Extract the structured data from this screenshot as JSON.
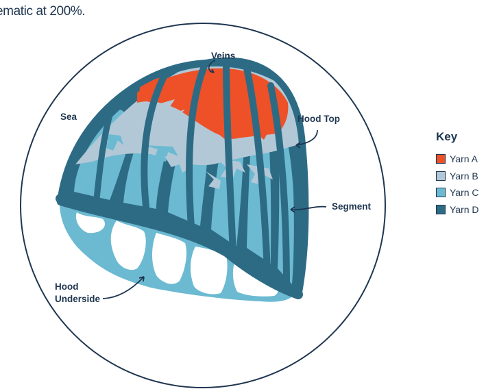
{
  "caption": "ematic at 200%.",
  "labels": {
    "veins": "Veins",
    "sea": "Sea",
    "hood_top": "Hood Top",
    "segment": "Segment",
    "hood_underside_line1": "Hood",
    "hood_underside_line2": "Underside"
  },
  "key": {
    "title": "Key",
    "items": [
      {
        "label": "Yarn A",
        "color": "#ee5028"
      },
      {
        "label": "Yarn B",
        "color": "#b3c8d6"
      },
      {
        "label": "Yarn C",
        "color": "#6cbad2"
      },
      {
        "label": "Yarn D",
        "color": "#2d6b85"
      }
    ]
  },
  "colors": {
    "outline": "#1f3650",
    "yarn_a": "#ee5028",
    "yarn_b": "#b3c8d6",
    "yarn_c": "#6cbad2",
    "yarn_d": "#2d6b85"
  }
}
